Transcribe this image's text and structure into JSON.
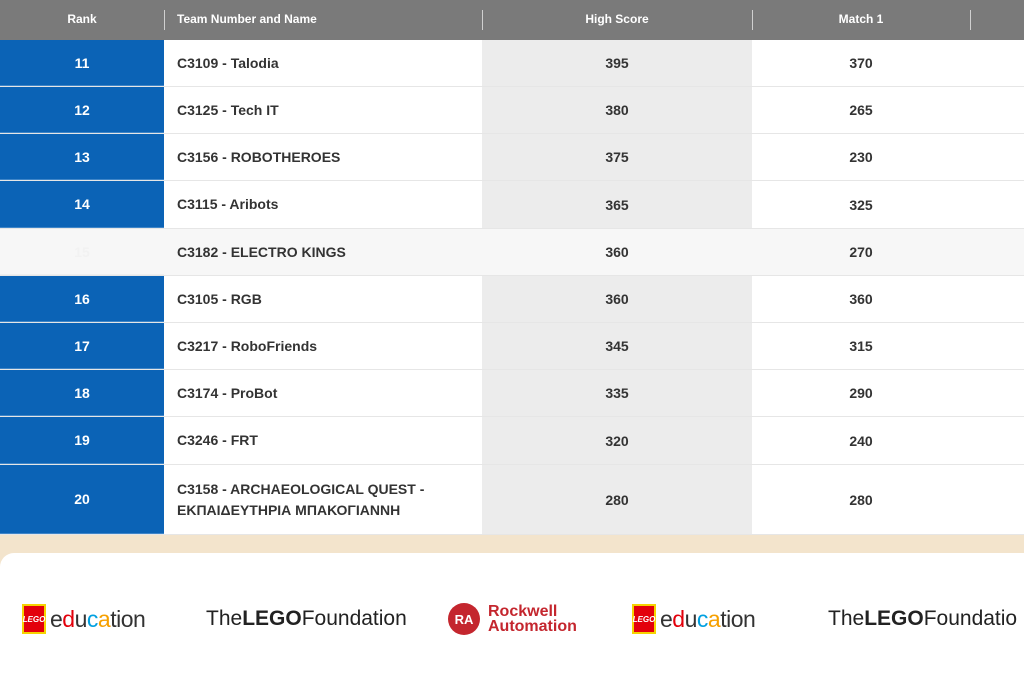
{
  "table": {
    "headers": {
      "rank": "Rank",
      "team": "Team Number and Name",
      "high_score": "High Score",
      "match1": "Match 1"
    },
    "rows": [
      {
        "rank": "11",
        "team": "C3109 - Talodia",
        "high_score": "395",
        "match1": "370"
      },
      {
        "rank": "12",
        "team": "C3125 - Tech IT",
        "high_score": "380",
        "match1": "265"
      },
      {
        "rank": "13",
        "team": "C3156 - ROBOTHEROES",
        "high_score": "375",
        "match1": "230"
      },
      {
        "rank": "14",
        "team": "C3115 - Aribots",
        "high_score": "365",
        "match1": "325"
      },
      {
        "rank": "15",
        "team": "C3182 - ELECTRO KINGS",
        "high_score": "360",
        "match1": "270"
      },
      {
        "rank": "16",
        "team": "C3105 - RGB",
        "high_score": "360",
        "match1": "360"
      },
      {
        "rank": "17",
        "team": "C3217 - RoboFriends",
        "high_score": "345",
        "match1": "315"
      },
      {
        "rank": "18",
        "team": "C3174 - ProBot",
        "high_score": "335",
        "match1": "290"
      },
      {
        "rank": "19",
        "team": "C3246 - FRT",
        "high_score": "320",
        "match1": "240"
      },
      {
        "rank": "20",
        "team": "C3158 - ARCHAEOLOGICAL QUEST - ΕΚΠΑΙΔΕΥΤΗΡΙΑ ΜΠΑΚΟΓΙΑΝΝΗ",
        "high_score": "280",
        "match1": "280"
      }
    ]
  },
  "sponsors": {
    "lego_mark": "LEGO",
    "edu_parts": [
      "e",
      "d",
      "u",
      "c",
      "a",
      "tion"
    ],
    "foundation_prefix": "The ",
    "foundation_bold": "LEGO",
    "foundation_suffix": " Foundation",
    "foundation_suffix_cut": " Foundatio",
    "rockwell_mark": "RA",
    "rockwell_line1": "Rockwell",
    "rockwell_line2": "Automation"
  },
  "colors": {
    "rank_blue": "#0b63b6",
    "header_gray": "#7a7a7a",
    "rockwell_red": "#c4262e",
    "lego_red": "#e3000b"
  }
}
